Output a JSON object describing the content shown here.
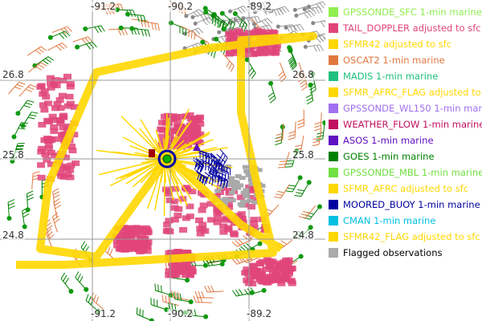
{
  "map": {
    "lon_labels_top": [
      "-91.2",
      "-90.2",
      "-89.2"
    ],
    "lon_labels_bottom": [
      "-91.2",
      "-90.2",
      "-89.2"
    ],
    "lat_labels_left": [
      "26.8",
      "25.8",
      "24.8"
    ],
    "lat_labels_right": [
      "26.8",
      "25.8",
      "24.8"
    ],
    "grid_color": "#999999",
    "storm_center_icon": "hurricane-symbol-icon",
    "storm_center_color": "#00b000"
  },
  "legend": {
    "items": [
      {
        "label": "GPSSONDE_SFC 1-min marine",
        "color": "#90ee50"
      },
      {
        "label": "TAIL_DOPPLER adjusted to sfc",
        "color": "#e0457a"
      },
      {
        "label": "SFMR42 adjusted to sfc",
        "color": "#ffd700"
      },
      {
        "label": "OSCAT2 1-min marine",
        "color": "#e07840"
      },
      {
        "label": "MADIS 1-min marine",
        "color": "#20c080"
      },
      {
        "label": "SFMR_AFRC_FLAG adjusted to sfc",
        "color": "#ffd700"
      },
      {
        "label": "GPSSONDE_WL150 1-min marine",
        "color": "#a070f0"
      },
      {
        "label": "WEATHER_FLOW 1-min marine",
        "color": "#c01060"
      },
      {
        "label": "ASOS 1-min marine",
        "color": "#6010c0"
      },
      {
        "label": "GOES 1-min marine",
        "color": "#008000"
      },
      {
        "label": "GPSSONDE_MBL 1-min marine",
        "color": "#70e040"
      },
      {
        "label": "SFMR_AFRC adjusted to sfc",
        "color": "#ffd700"
      },
      {
        "label": "MOORED_BUOY 1-min marine",
        "color": "#0000a0"
      },
      {
        "label": "CMAN 1-min marine",
        "color": "#00c0e0"
      },
      {
        "label": "SFMR42_FLAG adjusted to sfc",
        "color": "#ffd700"
      },
      {
        "label": "Flagged observations",
        "color": "#aaaaaa"
      }
    ]
  }
}
